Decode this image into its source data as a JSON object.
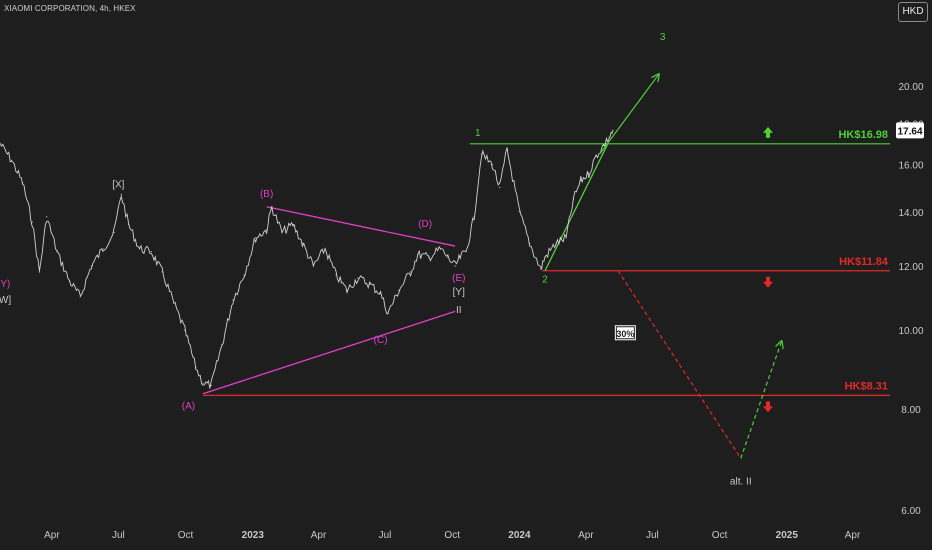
{
  "header": {
    "symbol_title": "XIAOMI CORPORATION, 4h, HKEX",
    "currency": "HKD"
  },
  "colors": {
    "background": "#1e1e1e",
    "bullish": "#4cd136",
    "bearish": "#e02a2a",
    "wave_magenta": "#e040c8",
    "axis_text": "#c8c8c8",
    "price_line": "#d0d0d0",
    "last_price_box": "#ffffff"
  },
  "chart_data": {
    "type": "line",
    "title": "",
    "xlabel": "",
    "ylabel": "",
    "y_scale": "log",
    "ylim": [
      5.8,
      24
    ],
    "xlim": [
      "2022-01-20",
      "2025-05-25"
    ],
    "x_tick_labels": [
      {
        "label": "Apr",
        "date": "2022-04-01"
      },
      {
        "label": "Jul",
        "date": "2022-07-01"
      },
      {
        "label": "Oct",
        "date": "2022-10-01"
      },
      {
        "label": "2023",
        "date": "2023-01-01"
      },
      {
        "label": "Apr",
        "date": "2023-04-01"
      },
      {
        "label": "Jul",
        "date": "2023-07-01"
      },
      {
        "label": "Oct",
        "date": "2023-10-01"
      },
      {
        "label": "2024",
        "date": "2024-01-01"
      },
      {
        "label": "Apr",
        "date": "2024-04-01"
      },
      {
        "label": "Jul",
        "date": "2024-07-01"
      },
      {
        "label": "Oct",
        "date": "2024-10-01"
      },
      {
        "label": "2025",
        "date": "2025-01-01"
      },
      {
        "label": "Apr",
        "date": "2025-04-01"
      }
    ],
    "y_tick_labels": [
      "20.00",
      "18.00",
      "16.00",
      "14.00",
      "12.00",
      "10.00",
      "8.00",
      "6.00"
    ],
    "y_tick_values": [
      20,
      18,
      16,
      14,
      12,
      10,
      8,
      6
    ],
    "last_price": {
      "label": "17.64",
      "value": 17.64
    },
    "series": [
      {
        "x": [
          "2022-01-20",
          "2022-02-05",
          "2022-02-20",
          "2022-03-05",
          "2022-03-15",
          "2022-03-25",
          "2022-04-08",
          "2022-04-25",
          "2022-05-10",
          "2022-05-25",
          "2022-06-10",
          "2022-06-25",
          "2022-07-05",
          "2022-07-15",
          "2022-07-30",
          "2022-08-15",
          "2022-08-30",
          "2022-09-15",
          "2022-09-30",
          "2022-10-15",
          "2022-10-25",
          "2022-11-05",
          "2022-11-20",
          "2022-12-05",
          "2022-12-20",
          "2023-01-05",
          "2023-01-20",
          "2023-01-27",
          "2023-02-10",
          "2023-02-25",
          "2023-03-10",
          "2023-03-25",
          "2023-04-10",
          "2023-04-25",
          "2023-05-10",
          "2023-05-25",
          "2023-06-10",
          "2023-06-25",
          "2023-07-05",
          "2023-07-20",
          "2023-08-05",
          "2023-08-15",
          "2023-08-30",
          "2023-09-15",
          "2023-09-25",
          "2023-10-05",
          "2023-10-12",
          "2023-10-20",
          "2023-10-31",
          "2023-11-10",
          "2023-11-25",
          "2023-12-05",
          "2023-12-15",
          "2024-01-01",
          "2024-01-15",
          "2024-01-30",
          "2024-02-05",
          "2024-02-20",
          "2024-03-05",
          "2024-03-15",
          "2024-03-25",
          "2024-04-05",
          "2024-04-15",
          "2024-04-25",
          "2024-05-03",
          "2024-05-08"
        ],
        "values": [
          17.0,
          16.2,
          15.2,
          13.6,
          11.8,
          13.8,
          12.5,
          11.5,
          11.0,
          12.0,
          12.6,
          13.2,
          14.7,
          13.5,
          12.6,
          12.5,
          11.8,
          10.8,
          10.0,
          9.0,
          8.6,
          8.55,
          9.6,
          10.9,
          11.7,
          13.0,
          13.3,
          14.2,
          13.2,
          13.5,
          12.8,
          12.0,
          12.6,
          11.7,
          11.2,
          11.6,
          11.4,
          11.1,
          10.5,
          11.2,
          11.8,
          12.4,
          12.3,
          12.6,
          12.3,
          12.0,
          12.3,
          12.5,
          13.8,
          16.5,
          16.0,
          15.0,
          16.7,
          14.0,
          12.8,
          11.9,
          12.3,
          12.8,
          13.0,
          14.5,
          15.3,
          15.6,
          16.4,
          16.9,
          17.3,
          17.64
        ]
      }
    ],
    "horizontal_levels": [
      {
        "label": "HK$16.98",
        "value": 16.98,
        "color": "bullish",
        "signal": "up-arrow"
      },
      {
        "label": "HK$11.84",
        "value": 11.84,
        "color": "bearish",
        "signal": "down-arrow"
      },
      {
        "label": "HK$8.31",
        "value": 8.31,
        "color": "bearish",
        "signal": "down-arrow"
      }
    ],
    "trendlines": [
      {
        "color": "wave_magenta",
        "from": {
          "x": "2022-10-25",
          "y": 8.35
        },
        "to": {
          "x": "2023-10-05",
          "y": 10.55
        }
      },
      {
        "color": "wave_magenta",
        "from": {
          "x": "2023-01-20",
          "y": 14.2
        },
        "to": {
          "x": "2023-10-05",
          "y": 12.7
        }
      },
      {
        "color": "bullish",
        "from": {
          "x": "2024-02-05",
          "y": 11.84
        },
        "to": {
          "x": "2024-05-01",
          "y": 16.98
        }
      }
    ],
    "projections": [
      {
        "color": "bullish",
        "dashed": false,
        "arrow": true,
        "from": {
          "x": "2024-04-20",
          "y": 16.5
        },
        "to": {
          "x": "2024-07-10",
          "y": 20.7
        }
      },
      {
        "color": "bearish",
        "dashed": true,
        "arrow": false,
        "from": {
          "x": "2024-05-15",
          "y": 11.84
        },
        "to": {
          "x": "2024-10-30",
          "y": 6.95
        }
      },
      {
        "color": "bullish",
        "dashed": true,
        "arrow": true,
        "from": {
          "x": "2024-10-30",
          "y": 6.95
        },
        "to": {
          "x": "2024-12-25",
          "y": 9.7
        }
      }
    ],
    "annotations": [
      {
        "text": "(Y)",
        "x": "2022-01-25",
        "y": 11.3,
        "color": "wave_magenta"
      },
      {
        "text": "[W]",
        "x": "2022-01-25",
        "y": 10.8,
        "color": "axis_text"
      },
      {
        "text": "[X]",
        "x": "2022-07-01",
        "y": 15.0,
        "color": "axis_text"
      },
      {
        "text": "(A)",
        "x": "2022-10-05",
        "y": 8.0,
        "color": "wave_magenta"
      },
      {
        "text": "(B)",
        "x": "2023-01-20",
        "y": 14.6,
        "color": "wave_magenta"
      },
      {
        "text": "(C)",
        "x": "2023-06-25",
        "y": 9.65,
        "color": "wave_magenta"
      },
      {
        "text": "(D)",
        "x": "2023-08-25",
        "y": 13.4,
        "color": "wave_magenta"
      },
      {
        "text": "(E)",
        "x": "2023-10-10",
        "y": 11.5,
        "color": "wave_magenta"
      },
      {
        "text": "[Y]",
        "x": "2023-10-10",
        "y": 11.05,
        "color": "axis_text"
      },
      {
        "text": "II",
        "x": "2023-10-10",
        "y": 10.5,
        "color": "axis_text"
      },
      {
        "text": "1",
        "x": "2023-11-05",
        "y": 17.35,
        "color": "bullish"
      },
      {
        "text": "2",
        "x": "2024-02-05",
        "y": 11.45,
        "color": "bullish"
      },
      {
        "text": "3",
        "x": "2024-07-15",
        "y": 22.8,
        "color": "bullish"
      },
      {
        "text": "alt. II",
        "x": "2024-10-30",
        "y": 6.45,
        "color": "axis_text"
      }
    ],
    "probability_badge": {
      "text": "30%",
      "x": "2024-05-25",
      "y": 9.9
    }
  }
}
